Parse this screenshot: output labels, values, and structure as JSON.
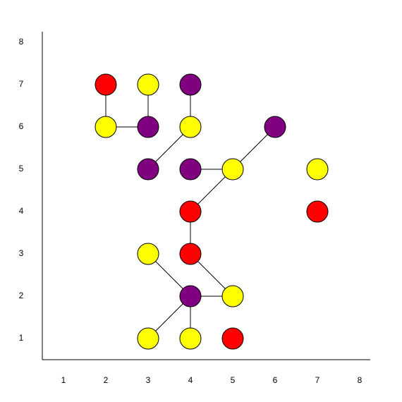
{
  "chart_data": {
    "type": "network",
    "xlim": [
      0.5,
      8.25
    ],
    "ylim": [
      0.5,
      8.25
    ],
    "xticks": [
      1,
      2,
      3,
      4,
      5,
      6,
      7,
      8
    ],
    "yticks": [
      1,
      2,
      3,
      4,
      5,
      6,
      7,
      8
    ],
    "nodes": [
      {
        "x": 2,
        "y": 7,
        "color": "#ff0000"
      },
      {
        "x": 3,
        "y": 7,
        "color": "#ffff00"
      },
      {
        "x": 4,
        "y": 7,
        "color": "#800080"
      },
      {
        "x": 2,
        "y": 6,
        "color": "#ffff00"
      },
      {
        "x": 3,
        "y": 6,
        "color": "#800080"
      },
      {
        "x": 4,
        "y": 6,
        "color": "#ffff00"
      },
      {
        "x": 6,
        "y": 6,
        "color": "#800080"
      },
      {
        "x": 3,
        "y": 5,
        "color": "#800080"
      },
      {
        "x": 4,
        "y": 5,
        "color": "#800080"
      },
      {
        "x": 5,
        "y": 5,
        "color": "#ffff00"
      },
      {
        "x": 7,
        "y": 5,
        "color": "#ffff00"
      },
      {
        "x": 4,
        "y": 4,
        "color": "#ff0000"
      },
      {
        "x": 7,
        "y": 4,
        "color": "#ff0000"
      },
      {
        "x": 3,
        "y": 3,
        "color": "#ffff00"
      },
      {
        "x": 4,
        "y": 3,
        "color": "#ff0000"
      },
      {
        "x": 4,
        "y": 2,
        "color": "#800080"
      },
      {
        "x": 5,
        "y": 2,
        "color": "#ffff00"
      },
      {
        "x": 3,
        "y": 1,
        "color": "#ffff00"
      },
      {
        "x": 4,
        "y": 1,
        "color": "#ffff00"
      },
      {
        "x": 5,
        "y": 1,
        "color": "#ff0000"
      }
    ],
    "edges": [
      [
        0,
        3
      ],
      [
        1,
        4
      ],
      [
        2,
        5
      ],
      [
        3,
        4
      ],
      [
        5,
        7
      ],
      [
        6,
        9
      ],
      [
        8,
        9
      ],
      [
        9,
        11
      ],
      [
        11,
        14
      ],
      [
        14,
        16
      ],
      [
        13,
        15
      ],
      [
        15,
        16
      ],
      [
        15,
        17
      ],
      [
        15,
        18
      ]
    ]
  }
}
